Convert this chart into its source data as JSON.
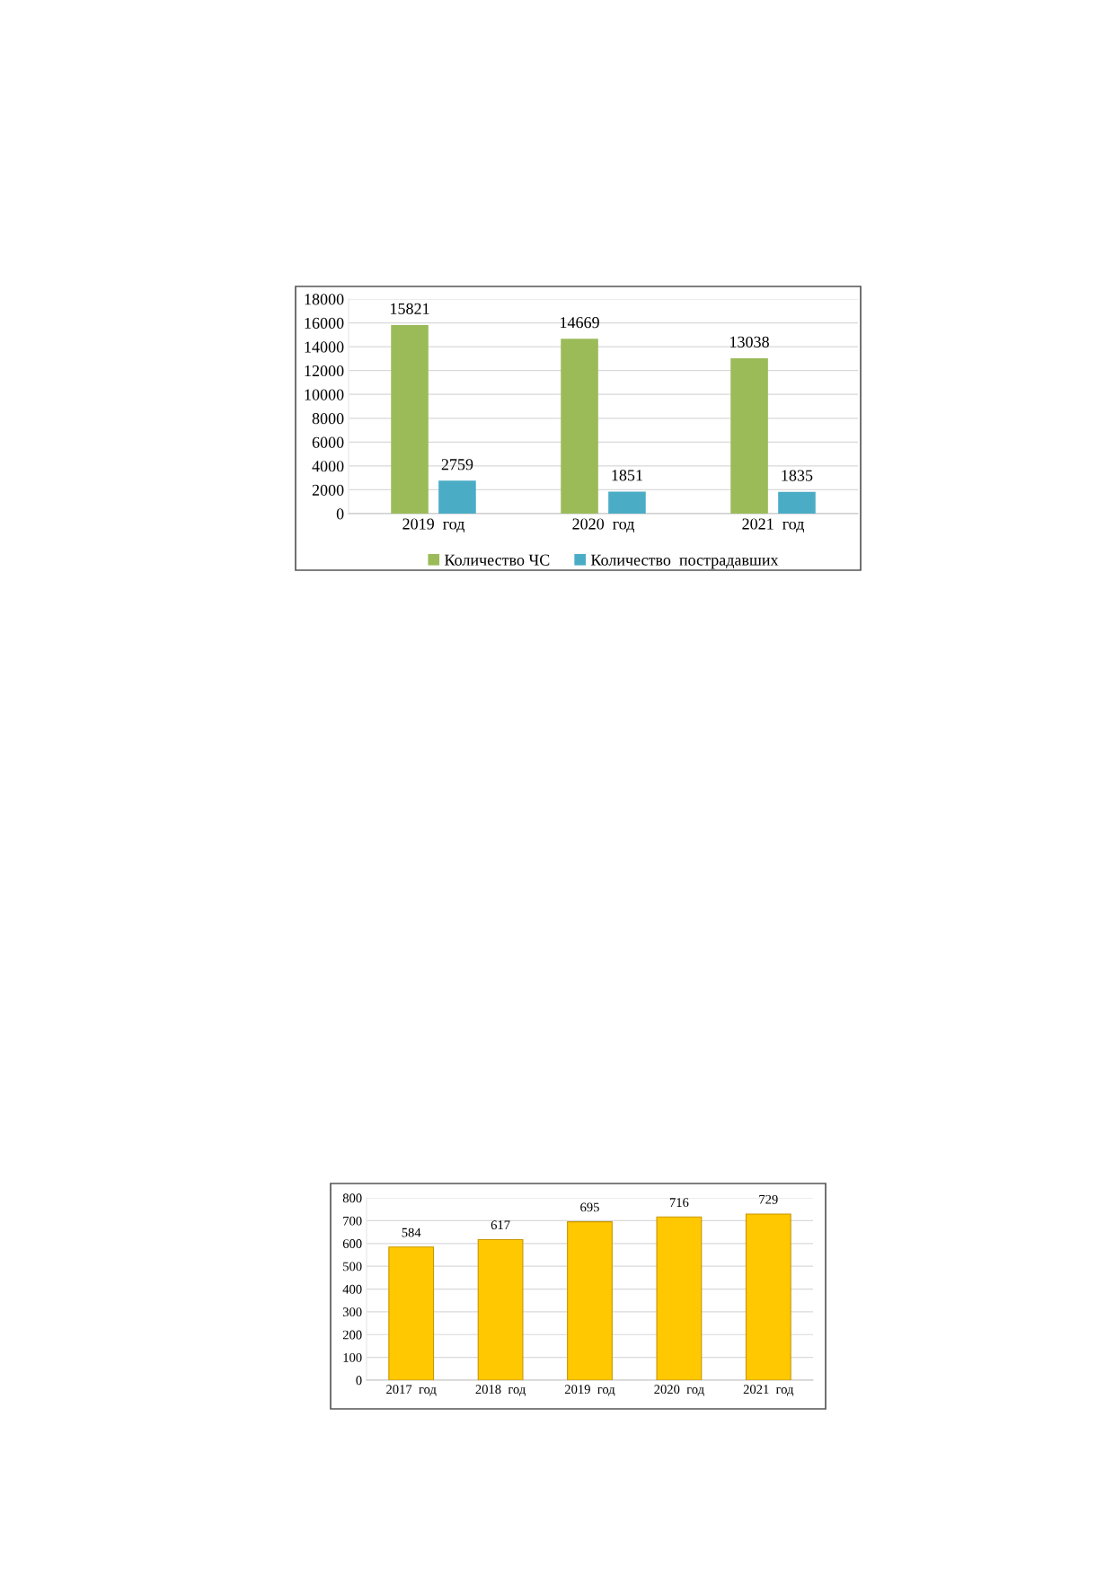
{
  "chart_data": [
    {
      "type": "bar",
      "categories": [
        "2019  год",
        "2020  год",
        "2021  год"
      ],
      "series": [
        {
          "name": "Количество ЧС",
          "color": "#9bbb59",
          "values": [
            15821,
            14669,
            13038
          ]
        },
        {
          "name": "Количество  пострадавших",
          "color": "#4bacc6",
          "values": [
            2759,
            1851,
            1835
          ]
        }
      ],
      "ylim": [
        0,
        18000
      ],
      "yticks": [
        0,
        2000,
        4000,
        6000,
        8000,
        10000,
        12000,
        14000,
        16000,
        18000
      ],
      "grid": "y",
      "legend": "bottom",
      "data_labels": true
    },
    {
      "type": "bar",
      "categories": [
        "2017  год",
        "2018  год",
        "2019  год",
        "2020  год",
        "2021  год"
      ],
      "series": [
        {
          "color": "#ffc800",
          "values": [
            584,
            617,
            695,
            716,
            729
          ]
        }
      ],
      "ylim": [
        0,
        800
      ],
      "yticks": [
        0,
        100,
        200,
        300,
        400,
        500,
        600,
        700,
        800
      ],
      "grid": "y",
      "data_labels": true
    }
  ]
}
